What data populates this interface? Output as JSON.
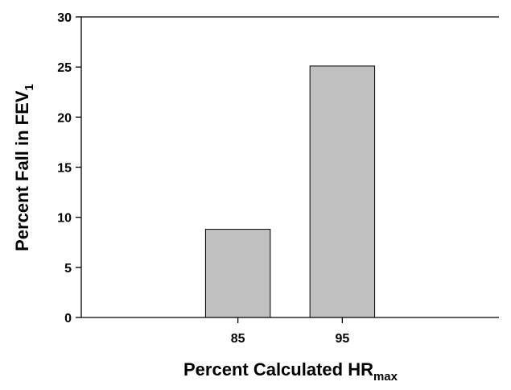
{
  "chart_data": {
    "type": "bar",
    "categories": [
      "85",
      "95"
    ],
    "values": [
      8.8,
      25.1
    ],
    "xlabel": {
      "main": "Percent Calculated HR",
      "subscript": "max"
    },
    "ylabel": {
      "main": "Percent Fall in FEV",
      "subscript": "1"
    },
    "ylim": [
      0,
      30
    ],
    "yticks": [
      "0",
      "5",
      "10",
      "15",
      "20",
      "25",
      "30"
    ],
    "grid": false,
    "legend": "none",
    "colors": {
      "bar_fill": "#c0c0c0",
      "bar_stroke": "#000000",
      "axis": "#000000"
    }
  }
}
